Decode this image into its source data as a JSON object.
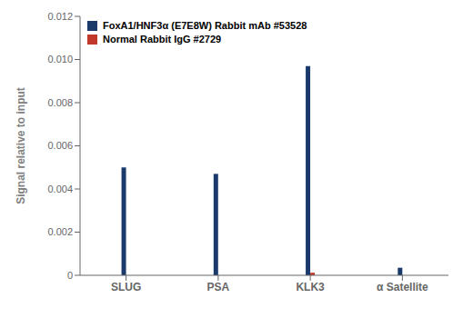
{
  "chart_data": {
    "type": "bar",
    "categories": [
      "SLUG",
      "PSA",
      "KLK3",
      "α Satellite"
    ],
    "series": [
      {
        "name": "FoxA1/HNF3α (E7E8W) Rabbit mAb #53528",
        "color": "#1a3a6b",
        "values": [
          0.005,
          0.0047,
          0.0097,
          0.00035
        ]
      },
      {
        "name": "Normal Rabbit IgG #2729",
        "color": "#c0392b",
        "values": [
          0.0,
          0.0,
          0.00012,
          0.0
        ]
      }
    ],
    "ylabel": "Signal relative to input",
    "ylim": [
      0,
      0.012
    ],
    "yticks": [
      0,
      0.002,
      0.004,
      0.006,
      0.008,
      {
        "value": 0.01,
        "label": "0.010"
      },
      0.012
    ],
    "grid": false,
    "legend": "upper left"
  }
}
